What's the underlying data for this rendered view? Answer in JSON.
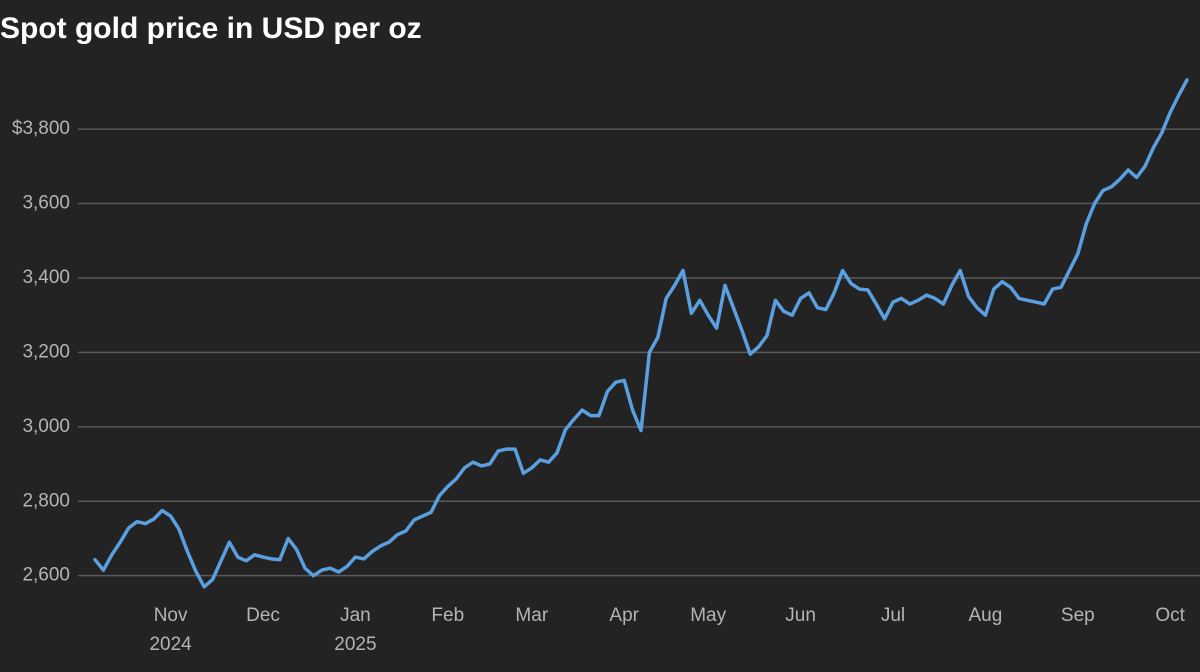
{
  "chart_data": {
    "type": "line",
    "title": "Spot gold price in USD per oz",
    "color": "#5a9fe0",
    "grid": true,
    "ylim": [
      2540,
      3940
    ],
    "yticks": [
      {
        "value": 2600,
        "label": "2,600"
      },
      {
        "value": 2800,
        "label": "2,800"
      },
      {
        "value": 3000,
        "label": "3,000"
      },
      {
        "value": 3200,
        "label": "3,200"
      },
      {
        "value": 3400,
        "label": "3,400"
      },
      {
        "value": 3600,
        "label": "3,600"
      },
      {
        "value": 3800,
        "label": "$3,800"
      }
    ],
    "categories": [
      null,
      null,
      null,
      null,
      null,
      null,
      null,
      null,
      null,
      "Nov 2024",
      null,
      null,
      null,
      null,
      null,
      null,
      null,
      null,
      null,
      null,
      "Dec",
      null,
      null,
      null,
      null,
      null,
      null,
      null,
      null,
      null,
      null,
      "Jan 2025",
      null,
      null,
      null,
      null,
      null,
      null,
      null,
      null,
      null,
      null,
      "Feb",
      null,
      null,
      null,
      null,
      null,
      null,
      null,
      null,
      null,
      "Mar",
      null,
      null,
      null,
      null,
      null,
      null,
      null,
      null,
      null,
      null,
      "Apr",
      null,
      null,
      null,
      null,
      null,
      null,
      null,
      null,
      null,
      "May",
      null,
      null,
      null,
      null,
      null,
      null,
      null,
      null,
      null,
      null,
      "Jun",
      null,
      null,
      null,
      null,
      null,
      null,
      null,
      null,
      null,
      null,
      "Jul",
      null,
      null,
      null,
      null,
      null,
      null,
      null,
      null,
      null,
      null,
      "Aug",
      null,
      null,
      null,
      null,
      null,
      null,
      null,
      null,
      null,
      null,
      "Sep",
      null,
      null,
      null,
      null,
      null,
      null,
      null,
      null,
      null,
      null,
      "Oct",
      null,
      null
    ],
    "values": [
      2643,
      2615,
      2656,
      2690,
      2728,
      2745,
      2740,
      2752,
      2775,
      2760,
      2725,
      2665,
      2612,
      2570,
      2590,
      2640,
      2690,
      2650,
      2640,
      2656,
      2650,
      2645,
      2643,
      2700,
      2670,
      2620,
      2600,
      2615,
      2620,
      2610,
      2625,
      2650,
      2645,
      2665,
      2680,
      2690,
      2710,
      2720,
      2750,
      2760,
      2770,
      2815,
      2840,
      2860,
      2890,
      2905,
      2895,
      2900,
      2935,
      2940,
      2940,
      2875,
      2890,
      2911,
      2905,
      2930,
      2992,
      3020,
      3045,
      3030,
      3030,
      3095,
      3120,
      3125,
      3045,
      2990,
      3200,
      3240,
      3345,
      3380,
      3420,
      3305,
      3340,
      3300,
      3265,
      3380,
      3320,
      3260,
      3195,
      3215,
      3245,
      3340,
      3310,
      3300,
      3345,
      3360,
      3320,
      3315,
      3360,
      3420,
      3385,
      3370,
      3368,
      3330,
      3290,
      3335,
      3345,
      3330,
      3340,
      3354,
      3345,
      3330,
      3380,
      3420,
      3350,
      3320,
      3300,
      3370,
      3390,
      3375,
      3345,
      3340,
      3335,
      3330,
      3370,
      3375,
      3420,
      3465,
      3545,
      3600,
      3635,
      3645,
      3665,
      3690,
      3670,
      3700,
      3750,
      3790,
      3845,
      3890,
      3932
    ]
  }
}
